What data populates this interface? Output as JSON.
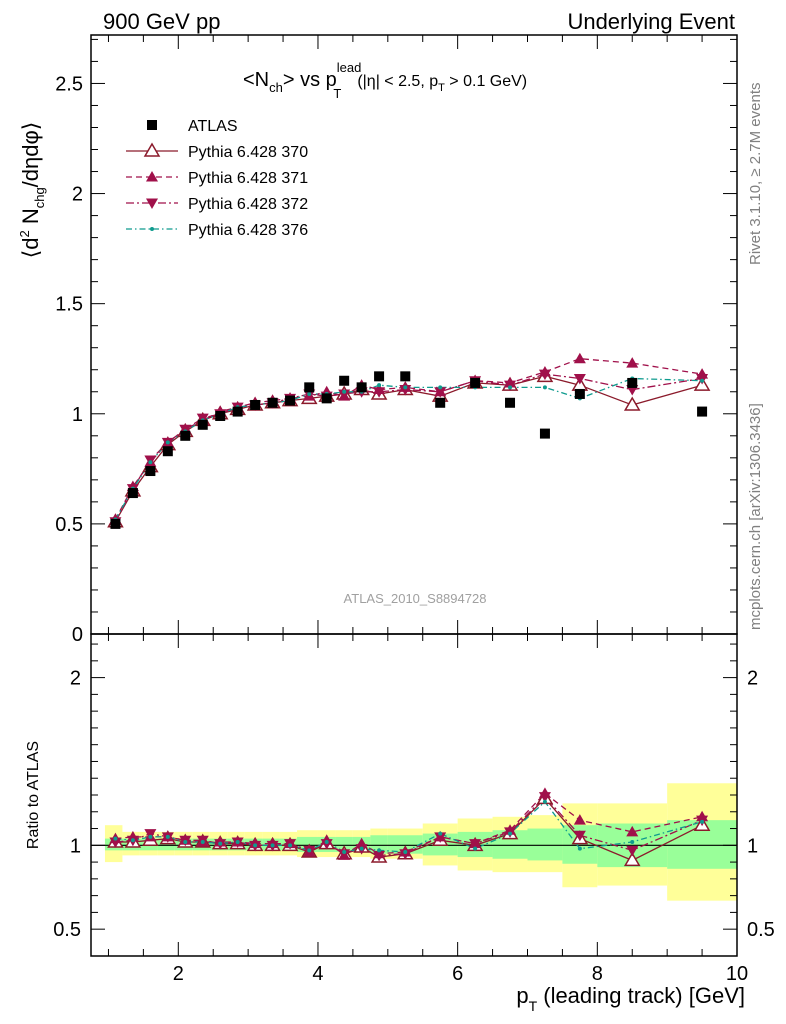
{
  "header": {
    "left": "900 GeV pp",
    "right": "Underlying Event"
  },
  "side_text": {
    "top": "Rivet 3.1.10, ≥ 2.7M events",
    "bottom": "mcplots.cern.ch [arXiv:1306.3436]"
  },
  "watermark": "ATLAS_2010_S8894728",
  "colors": {
    "atlas": "#000000",
    "p370": "#8b1a2b",
    "p371": "#a0104a",
    "p372": "#a0104a",
    "p376": "#0f9b8e",
    "band_inner": "#99ff99",
    "band_outer": "#ffff99"
  },
  "chart_data": [
    {
      "type": "scatter",
      "title": "<N_ch> vs p_T^lead (|η| < 2.5, p_T > 0.1 GeV)",
      "title_parts": {
        "main": "<N",
        "sub1": "ch",
        "mid": "> vs p",
        "sup": "lead",
        "sub2": "T",
        "cut": "(|η| < 2.5, p",
        "cut_sub": "T",
        "cut_end": " > 0.1 GeV)"
      },
      "ylabel": "⟨d² N_chg/dηdφ⟩",
      "ylabel_parts": {
        "a": "⟨d",
        "sup": "2",
        "b": " N",
        "sub": "chg",
        "c": "/dηdφ⟩"
      },
      "xlim": [
        0.75,
        10
      ],
      "ylim": [
        0,
        2.72
      ],
      "yticks": [
        0,
        0.5,
        1,
        1.5,
        2,
        2.5
      ],
      "ytick_labels": [
        "0",
        "0.5",
        "1",
        "1.5",
        "2",
        "2.5"
      ],
      "legend_position": "top-left",
      "series": [
        {
          "name": "ATLAS",
          "x": [
            1.1,
            1.35,
            1.6,
            1.85,
            2.1,
            2.35,
            2.6,
            2.85,
            3.1,
            3.35,
            3.6,
            3.875,
            4.125,
            4.375,
            4.625,
            4.875,
            5.25,
            5.75,
            6.25,
            6.75,
            7.25,
            7.75,
            8.5,
            9.5
          ],
          "y": [
            0.5,
            0.64,
            0.74,
            0.83,
            0.9,
            0.95,
            0.99,
            1.01,
            1.04,
            1.05,
            1.06,
            1.12,
            1.07,
            1.15,
            1.12,
            1.17,
            1.17,
            1.05,
            1.14,
            1.05,
            0.91,
            1.09,
            1.14,
            1.01
          ]
        },
        {
          "name": "Pythia 6.428 370",
          "x": [
            1.1,
            1.35,
            1.6,
            1.85,
            2.1,
            2.35,
            2.6,
            2.85,
            3.1,
            3.35,
            3.6,
            3.875,
            4.125,
            4.375,
            4.625,
            4.875,
            5.25,
            5.75,
            6.25,
            6.75,
            7.25,
            7.75,
            8.5,
            9.5
          ],
          "y": [
            0.51,
            0.65,
            0.76,
            0.86,
            0.92,
            0.97,
            1.0,
            1.02,
            1.04,
            1.05,
            1.06,
            1.07,
            1.08,
            1.09,
            1.11,
            1.09,
            1.11,
            1.08,
            1.14,
            1.13,
            1.17,
            1.13,
            1.04,
            1.13
          ]
        },
        {
          "name": "Pythia 6.428 371",
          "x": [
            1.1,
            1.35,
            1.6,
            1.85,
            2.1,
            2.35,
            2.6,
            2.85,
            3.1,
            3.35,
            3.6,
            3.875,
            4.125,
            4.375,
            4.625,
            4.875,
            5.25,
            5.75,
            6.25,
            6.75,
            7.25,
            7.75,
            8.5,
            9.5
          ],
          "y": [
            0.52,
            0.67,
            0.78,
            0.87,
            0.93,
            0.97,
            1.01,
            1.03,
            1.05,
            1.06,
            1.07,
            1.08,
            1.1,
            1.08,
            1.13,
            1.11,
            1.12,
            1.1,
            1.15,
            1.14,
            1.19,
            1.25,
            1.23,
            1.18
          ]
        },
        {
          "name": "Pythia 6.428 372",
          "x": [
            1.1,
            1.35,
            1.6,
            1.85,
            2.1,
            2.35,
            2.6,
            2.85,
            3.1,
            3.35,
            3.6,
            3.875,
            4.125,
            4.375,
            4.625,
            4.875,
            5.25,
            5.75,
            6.25,
            6.75,
            7.25,
            7.75,
            8.5,
            9.5
          ],
          "y": [
            0.51,
            0.66,
            0.79,
            0.87,
            0.93,
            0.98,
            1.0,
            1.03,
            1.04,
            1.05,
            1.07,
            1.09,
            1.08,
            1.09,
            1.1,
            1.1,
            1.11,
            1.1,
            1.15,
            1.13,
            1.18,
            1.16,
            1.11,
            1.16
          ]
        },
        {
          "name": "Pythia 6.428 376",
          "x": [
            1.1,
            1.35,
            1.6,
            1.85,
            2.1,
            2.35,
            2.6,
            2.85,
            3.1,
            3.35,
            3.6,
            3.875,
            4.125,
            4.375,
            4.625,
            4.875,
            5.25,
            5.75,
            6.25,
            6.75,
            7.25,
            7.75,
            8.5,
            9.5
          ],
          "y": [
            0.52,
            0.66,
            0.78,
            0.87,
            0.92,
            0.97,
            1.0,
            1.03,
            1.04,
            1.05,
            1.06,
            1.09,
            1.09,
            1.1,
            1.1,
            1.13,
            1.12,
            1.12,
            1.12,
            1.12,
            1.12,
            1.07,
            1.16,
            1.15
          ]
        }
      ]
    },
    {
      "type": "scatter",
      "title": "",
      "ylabel": "Ratio to ATLAS",
      "xlabel": "p_T (leading track) [GeV]",
      "xlabel_parts": {
        "a": "p",
        "sub": "T",
        "b": " (leading track) [GeV]"
      },
      "xlim": [
        0.75,
        10
      ],
      "ylim": [
        0.34,
        2.26
      ],
      "xticks": [
        2,
        4,
        6,
        8,
        10
      ],
      "xtick_labels": [
        "2",
        "4",
        "6",
        "8",
        "10"
      ],
      "yticks": [
        0.5,
        1,
        2
      ],
      "ytick_labels": [
        "0.5",
        "1",
        "2"
      ],
      "reference_line": 1,
      "bands": {
        "bin_edges": [
          0.95,
          1.2,
          1.45,
          1.7,
          1.95,
          2.2,
          2.45,
          2.7,
          2.95,
          3.2,
          3.45,
          3.7,
          4.0,
          4.25,
          4.5,
          4.75,
          5.0,
          5.5,
          6.0,
          6.5,
          7.0,
          7.5,
          8.0,
          9.0,
          10.0
        ],
        "inner_low": [
          0.97,
          0.97,
          0.97,
          0.97,
          0.97,
          0.97,
          0.97,
          0.97,
          0.97,
          0.97,
          0.97,
          0.96,
          0.96,
          0.96,
          0.96,
          0.95,
          0.95,
          0.94,
          0.93,
          0.92,
          0.91,
          0.89,
          0.87,
          0.86
        ],
        "inner_high": [
          1.04,
          1.04,
          1.04,
          1.04,
          1.04,
          1.04,
          1.04,
          1.04,
          1.04,
          1.04,
          1.04,
          1.05,
          1.05,
          1.05,
          1.05,
          1.06,
          1.06,
          1.07,
          1.08,
          1.09,
          1.1,
          1.12,
          1.13,
          1.15
        ],
        "outer_low": [
          0.9,
          0.94,
          0.94,
          0.94,
          0.94,
          0.94,
          0.94,
          0.94,
          0.94,
          0.94,
          0.94,
          0.93,
          0.93,
          0.93,
          0.93,
          0.92,
          0.92,
          0.88,
          0.85,
          0.84,
          0.84,
          0.75,
          0.76,
          0.67
        ],
        "outer_high": [
          1.12,
          1.08,
          1.08,
          1.08,
          1.08,
          1.08,
          1.08,
          1.08,
          1.08,
          1.08,
          1.08,
          1.09,
          1.09,
          1.09,
          1.09,
          1.1,
          1.1,
          1.13,
          1.16,
          1.17,
          1.18,
          1.25,
          1.25,
          1.37
        ]
      },
      "series": [
        {
          "name": "Pythia 6.428 370",
          "x": [
            1.1,
            1.35,
            1.6,
            1.85,
            2.1,
            2.35,
            2.6,
            2.85,
            3.1,
            3.35,
            3.6,
            3.875,
            4.125,
            4.375,
            4.625,
            4.875,
            5.25,
            5.75,
            6.25,
            6.75,
            7.25,
            7.75,
            8.5,
            9.5
          ],
          "y": [
            1.02,
            1.02,
            1.03,
            1.04,
            1.02,
            1.02,
            1.01,
            1.01,
            1.0,
            1.0,
            1.0,
            0.96,
            1.01,
            0.95,
            0.99,
            0.93,
            0.95,
            1.03,
            1.0,
            1.07,
            1.28,
            1.04,
            0.91,
            1.12
          ]
        },
        {
          "name": "Pythia 6.428 371",
          "x": [
            1.1,
            1.35,
            1.6,
            1.85,
            2.1,
            2.35,
            2.6,
            2.85,
            3.1,
            3.35,
            3.6,
            3.875,
            4.125,
            4.375,
            4.625,
            4.875,
            5.25,
            5.75,
            6.25,
            6.75,
            7.25,
            7.75,
            8.5,
            9.5
          ],
          "y": [
            1.04,
            1.05,
            1.05,
            1.05,
            1.03,
            1.02,
            1.02,
            1.02,
            1.01,
            1.01,
            1.01,
            0.96,
            1.03,
            0.94,
            1.01,
            0.95,
            0.96,
            1.05,
            1.01,
            1.09,
            1.31,
            1.15,
            1.08,
            1.17
          ]
        },
        {
          "name": "Pythia 6.428 372",
          "x": [
            1.1,
            1.35,
            1.6,
            1.85,
            2.1,
            2.35,
            2.6,
            2.85,
            3.1,
            3.35,
            3.6,
            3.875,
            4.125,
            4.375,
            4.625,
            4.875,
            5.25,
            5.75,
            6.25,
            6.75,
            7.25,
            7.75,
            8.5,
            9.5
          ],
          "y": [
            1.02,
            1.03,
            1.07,
            1.05,
            1.03,
            1.03,
            1.01,
            1.02,
            1.0,
            1.0,
            1.01,
            0.97,
            1.01,
            0.95,
            0.98,
            0.94,
            0.95,
            1.05,
            1.01,
            1.08,
            1.29,
            1.06,
            0.97,
            1.15
          ]
        },
        {
          "name": "Pythia 6.428 376",
          "x": [
            1.1,
            1.35,
            1.6,
            1.85,
            2.1,
            2.35,
            2.6,
            2.85,
            3.1,
            3.35,
            3.6,
            3.875,
            4.125,
            4.375,
            4.625,
            4.875,
            5.25,
            5.75,
            6.25,
            6.75,
            7.25,
            7.75,
            8.5,
            9.5
          ],
          "y": [
            1.04,
            1.03,
            1.05,
            1.05,
            1.02,
            1.02,
            1.01,
            1.02,
            1.0,
            1.0,
            1.0,
            0.97,
            1.02,
            0.96,
            0.98,
            0.97,
            0.96,
            1.07,
            0.98,
            1.07,
            1.26,
            0.98,
            1.02,
            1.14
          ]
        }
      ]
    }
  ]
}
